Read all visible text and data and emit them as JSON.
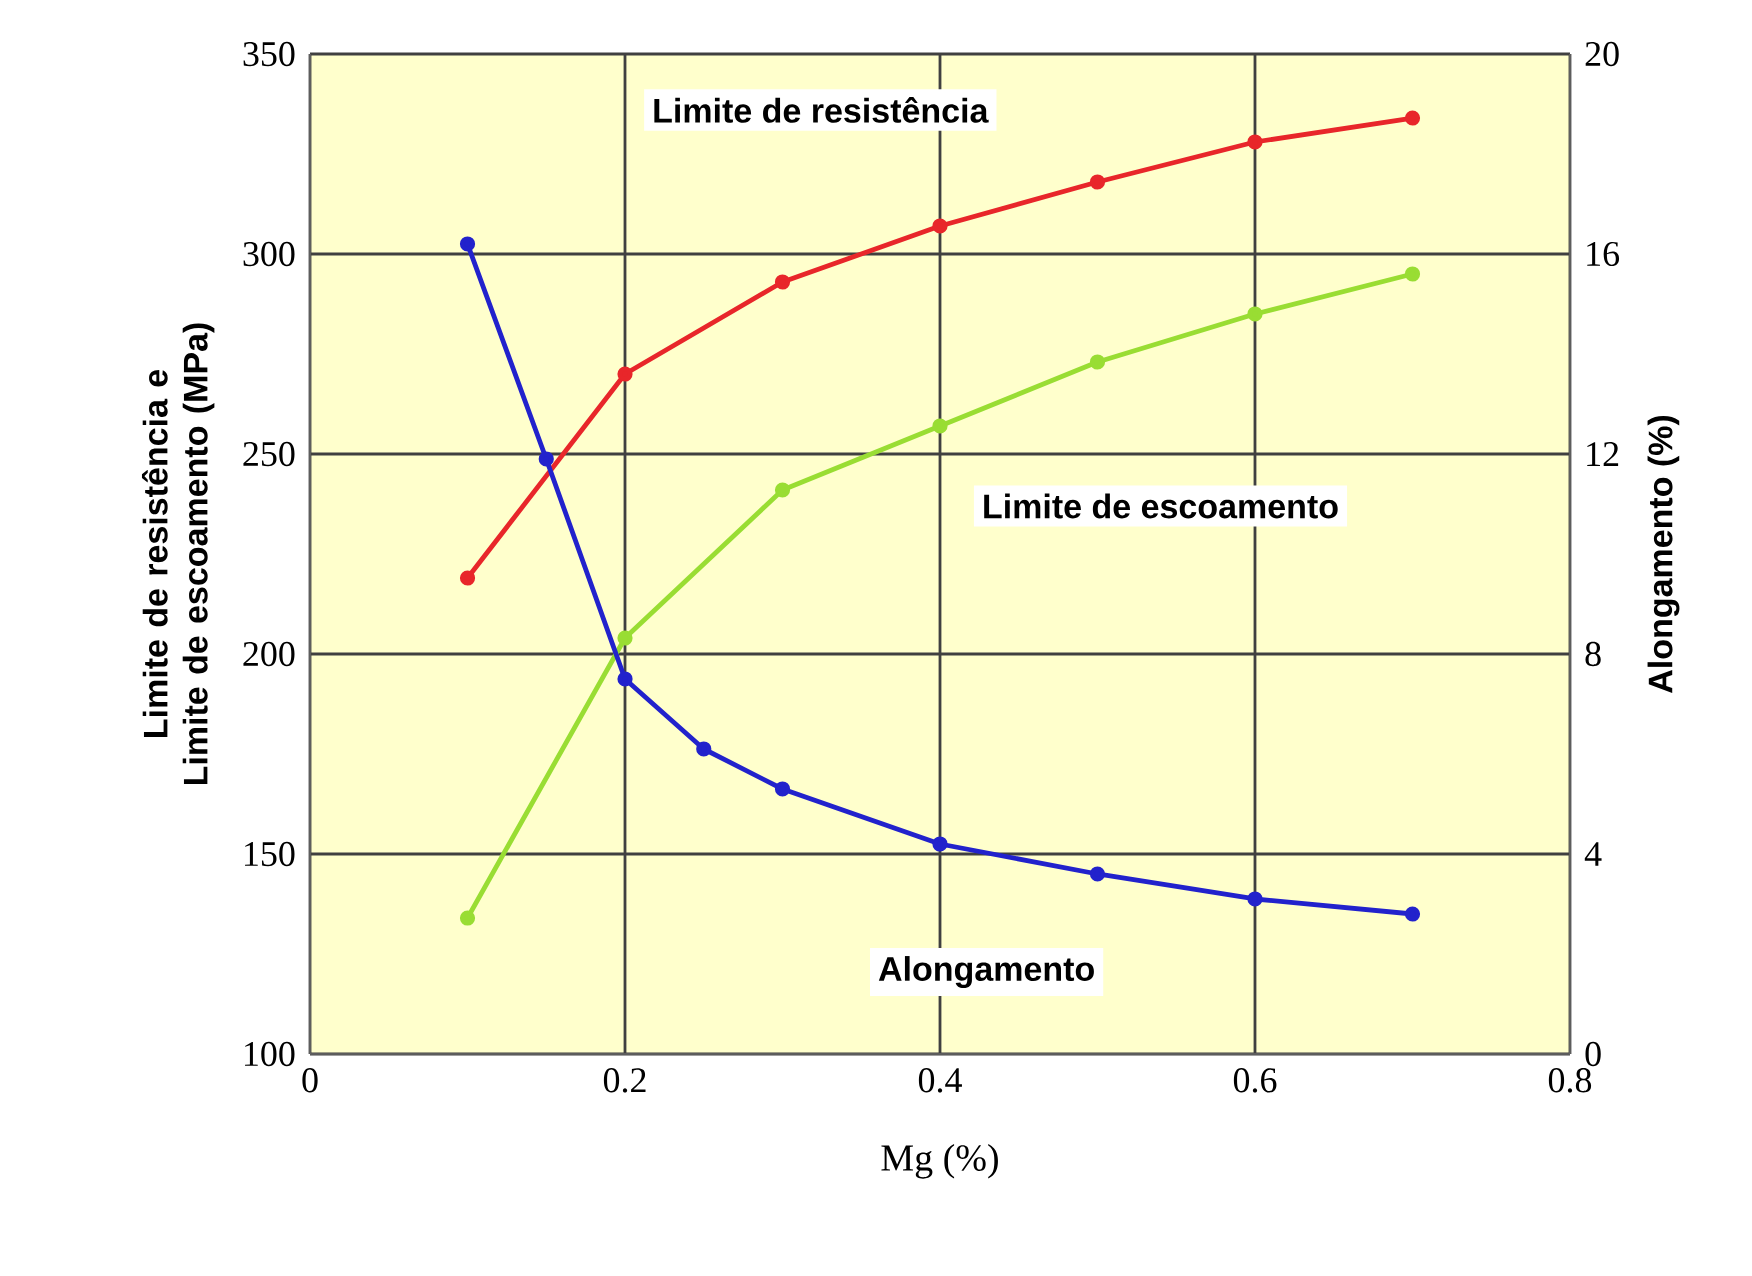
{
  "chart_data": {
    "type": "line",
    "xlabel": "Mg (%)",
    "ylabel": "Limite de resistência e Limite de escoamento (MPa)",
    "y2label": "Alongamento (%)",
    "x": [
      0.1,
      0.2,
      0.3,
      0.4,
      0.5,
      0.6,
      0.7
    ],
    "series": [
      {
        "name": "Limite de resistência",
        "color": "#e8262a",
        "values": [
          219,
          270,
          293,
          307,
          318,
          328,
          334
        ]
      },
      {
        "name": "Limite de escoamento",
        "color": "#99dd33",
        "values": [
          134,
          204,
          241,
          257,
          273,
          285,
          295
        ]
      },
      {
        "name": "Alongamento",
        "color": "#2222cc",
        "axis": "y2",
        "x": [
          0.1,
          0.15,
          0.2,
          0.25,
          0.3,
          0.4,
          0.5,
          0.6,
          0.7
        ],
        "values": [
          16.2,
          11.9,
          7.5,
          6.1,
          5.3,
          4.2,
          3.6,
          3.1,
          2.8
        ]
      }
    ],
    "xlim": [
      0,
      0.8
    ],
    "xticks": [
      0,
      0.2,
      0.4,
      0.6,
      0.8
    ],
    "ylim": [
      100,
      350
    ],
    "yticks": [
      100,
      150,
      200,
      250,
      300,
      350
    ],
    "y2lim": [
      0,
      20
    ],
    "y2ticks": [
      0,
      4,
      8,
      12,
      16,
      20
    ],
    "grid": true,
    "marker": "circle",
    "line_style": "solid"
  }
}
